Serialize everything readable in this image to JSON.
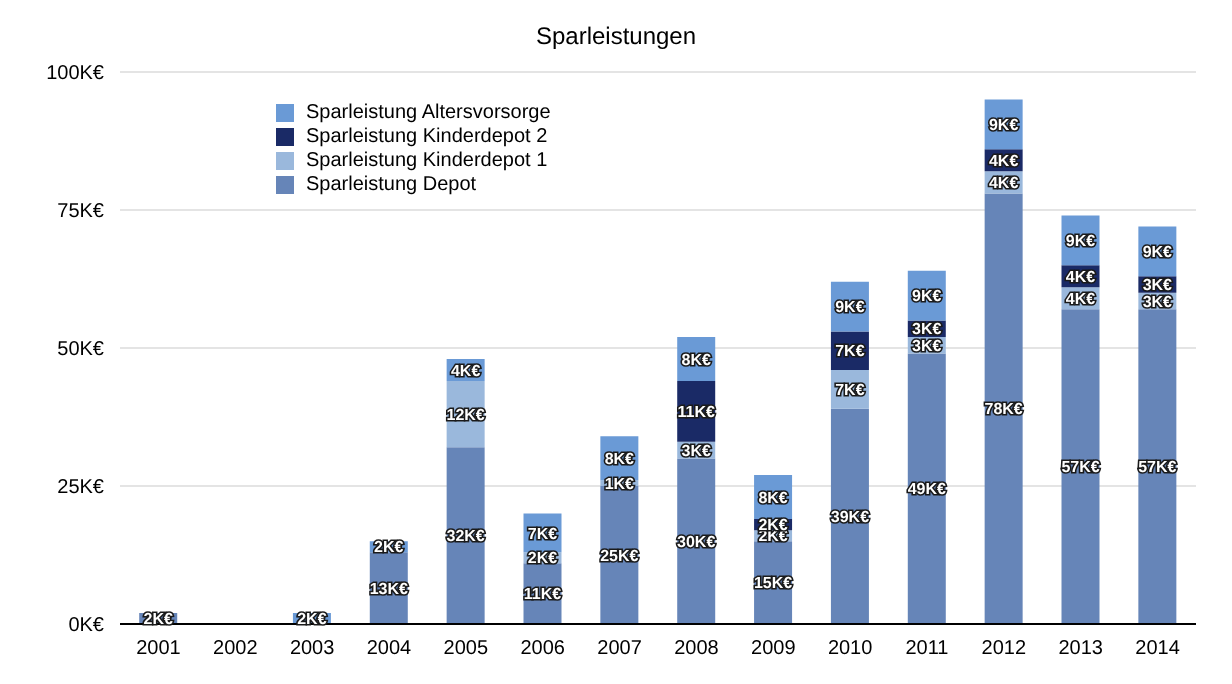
{
  "chart_data": {
    "type": "bar",
    "title": "Sparleistungen",
    "stacked": true,
    "categories": [
      "2001",
      "2002",
      "2003",
      "2004",
      "2005",
      "2006",
      "2007",
      "2008",
      "2009",
      "2010",
      "2011",
      "2012",
      "2013",
      "2014"
    ],
    "series": [
      {
        "name": "Sparleistung Depot",
        "color": "#6685b8",
        "values": [
          2,
          null,
          null,
          13,
          32,
          11,
          25,
          30,
          15,
          39,
          49,
          78,
          57,
          57
        ],
        "value_labels": [
          "2K€",
          null,
          null,
          "13K€",
          "32K€",
          "11K€",
          "25K€",
          "30K€",
          "15K€",
          "39K€",
          "49K€",
          "78K€",
          "57K€",
          "57K€"
        ]
      },
      {
        "name": "Sparleistung Kinderdepot 1",
        "color": "#9ab8dc",
        "values": [
          null,
          null,
          null,
          null,
          12,
          2,
          1,
          3,
          2,
          7,
          3,
          4,
          4,
          3
        ],
        "value_labels": [
          null,
          null,
          null,
          null,
          "12K€",
          "2K€",
          "1K€",
          "3K€",
          "2K€",
          "7K€",
          "3K€",
          "4K€",
          "4K€",
          "3K€"
        ]
      },
      {
        "name": "Sparleistung Kinderdepot 2",
        "color": "#1a2a66",
        "values": [
          null,
          null,
          null,
          null,
          null,
          null,
          null,
          11,
          2,
          7,
          3,
          4,
          4,
          3
        ],
        "value_labels": [
          null,
          null,
          null,
          null,
          null,
          null,
          null,
          "11K€",
          "2K€",
          "7K€",
          "3K€",
          "4K€",
          "4K€",
          "3K€"
        ]
      },
      {
        "name": "Sparleistung Altersvorsorge",
        "color": "#6a9ad6",
        "values": [
          null,
          null,
          2,
          2,
          4,
          7,
          8,
          8,
          8,
          9,
          9,
          9,
          9,
          9
        ],
        "value_labels": [
          null,
          null,
          "2K€",
          "2K€",
          "4K€",
          "7K€",
          "8K€",
          "8K€",
          "8K€",
          "9K€",
          "9K€",
          "9K€",
          "9K€",
          "9K€"
        ]
      }
    ],
    "ylim": [
      0,
      100
    ],
    "yticks": [
      {
        "value": 0,
        "label": "0K€"
      },
      {
        "value": 25,
        "label": "25K€"
      },
      {
        "value": 50,
        "label": "50K€"
      },
      {
        "value": 75,
        "label": "75K€"
      },
      {
        "value": 100,
        "label": "100K€"
      }
    ],
    "grid": "y",
    "legend": "top left"
  }
}
